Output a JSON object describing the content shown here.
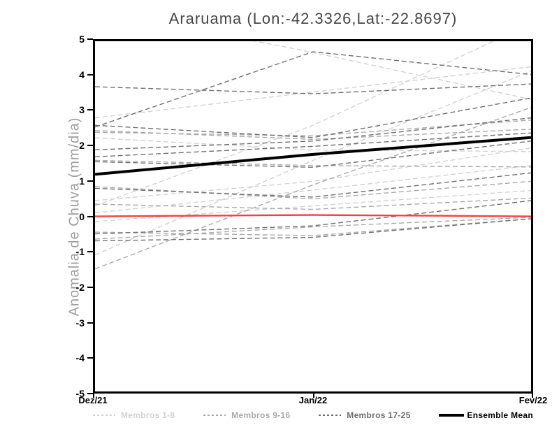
{
  "title": "Araruama (Lon:-42.3326,Lat:-22.8697)",
  "chart_data": {
    "type": "line",
    "x_categories": [
      "Dez/21",
      "Jan/22",
      "Fev/22"
    ],
    "ylabel": "Anomalia de Chuva (mm/dia)",
    "ylim": [
      -5,
      5
    ],
    "ytick_step": 1,
    "grid": false,
    "legend_position": "bottom",
    "line_style_members": "dashed",
    "groups": [
      {
        "name": "Membros 1-8",
        "color": "#d2d2d2",
        "members": [
          [
            2.81,
            3.55,
            4.27
          ],
          [
            5.9,
            4.68,
            3.34
          ],
          [
            0.3,
            2.6,
            5.5
          ],
          [
            -1.1,
            1.6,
            4.15
          ],
          [
            2.24,
            1.9,
            1.85
          ],
          [
            0.45,
            1.0,
            1.95
          ],
          [
            0.1,
            0.75,
            1.45
          ],
          [
            -0.15,
            0.3,
            0.74
          ]
        ]
      },
      {
        "name": "Membros 9-16",
        "color": "#a9a9a9",
        "members": [
          [
            -1.5,
            0.9,
            3.11
          ],
          [
            2.4,
            2.3,
            2.75
          ],
          [
            1.6,
            1.45,
            1.41
          ],
          [
            0.85,
            0.5,
            1.0
          ],
          [
            -0.45,
            -0.55,
            -0.07
          ],
          [
            0.35,
            0.2,
            0.52
          ],
          [
            2.45,
            2.2,
            2.49
          ],
          [
            -0.65,
            -0.3,
            -0.03
          ]
        ]
      },
      {
        "name": "Membros 17-25",
        "color": "#6f6f6f",
        "members": [
          [
            3.7,
            3.5,
            3.78
          ],
          [
            2.55,
            4.7,
            4.05
          ],
          [
            2.6,
            2.25,
            3.38
          ],
          [
            1.9,
            2.15,
            2.81
          ],
          [
            1.7,
            2.0,
            2.38
          ],
          [
            1.56,
            1.4,
            2.15
          ],
          [
            0.8,
            0.55,
            1.24
          ],
          [
            -0.5,
            -0.27,
            0.45
          ],
          [
            -0.7,
            -0.6,
            -0.07
          ]
        ]
      }
    ],
    "zero_line": {
      "color": "#fa3c3c",
      "values": [
        0.0,
        0.04,
        0.0
      ]
    },
    "mean": {
      "name": "Ensemble Mean",
      "color": "#000000",
      "values": [
        1.2,
        1.77,
        2.25
      ]
    }
  }
}
